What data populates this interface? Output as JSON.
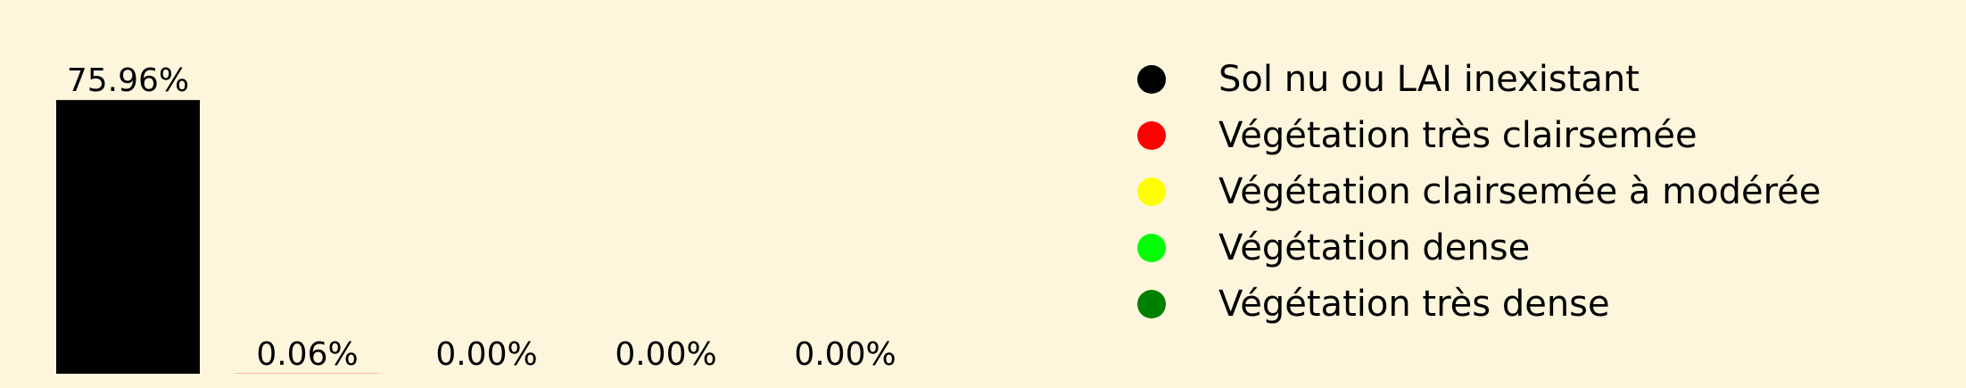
{
  "background_color": "#fdf6dc",
  "chart_data": {
    "type": "bar",
    "title": "",
    "xlabel": "",
    "ylabel": "",
    "categories": [
      "Sol nu ou LAI inexistant",
      "Végétation très clairsemée",
      "Végétation clairsemée à modérée",
      "Végétation dense",
      "Végétation très dense"
    ],
    "values": [
      75.96,
      0.06,
      0.0,
      0.0,
      0.0
    ],
    "data_labels": [
      "75.96%",
      "0.06%",
      "0.00%",
      "0.00%",
      "0.00%"
    ],
    "colors": [
      "#000000",
      "#ff0000",
      "#ffff00",
      "#00ff00",
      "#008000"
    ],
    "ylim": [
      0,
      76
    ],
    "grid": false,
    "axes_visible": false,
    "legend": {
      "position": "right",
      "entries": [
        {
          "label": "Sol nu ou LAI inexistant",
          "color": "#000000"
        },
        {
          "label": "Végétation très clairsemée",
          "color": "#ff0000"
        },
        {
          "label": "Végétation clairsemée à modérée",
          "color": "#ffff00"
        },
        {
          "label": "Végétation dense",
          "color": "#00ff00"
        },
        {
          "label": "Végétation très dense",
          "color": "#008000"
        }
      ]
    }
  }
}
